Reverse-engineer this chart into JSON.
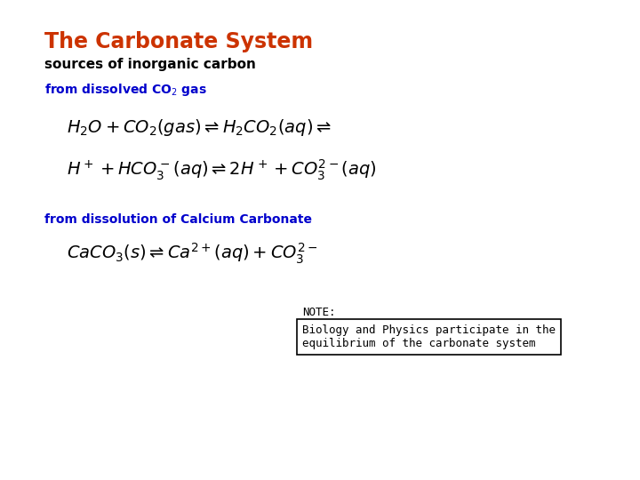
{
  "title": "The Carbonate System",
  "title_color": "#CC3300",
  "subtitle": "sources of inorganic carbon",
  "subtitle_color": "#000000",
  "label1_color": "#0000CC",
  "label2_color": "#0000CC",
  "note_label": "NOTE:",
  "note_text": "Biology and Physics participate in the\nequilibrium of the carbonate system",
  "bg_color": "#FFFFFF",
  "title_fontsize": 17,
  "subtitle_fontsize": 11,
  "label_fontsize": 10,
  "eq_fontsize": 14,
  "note_fontsize": 9
}
